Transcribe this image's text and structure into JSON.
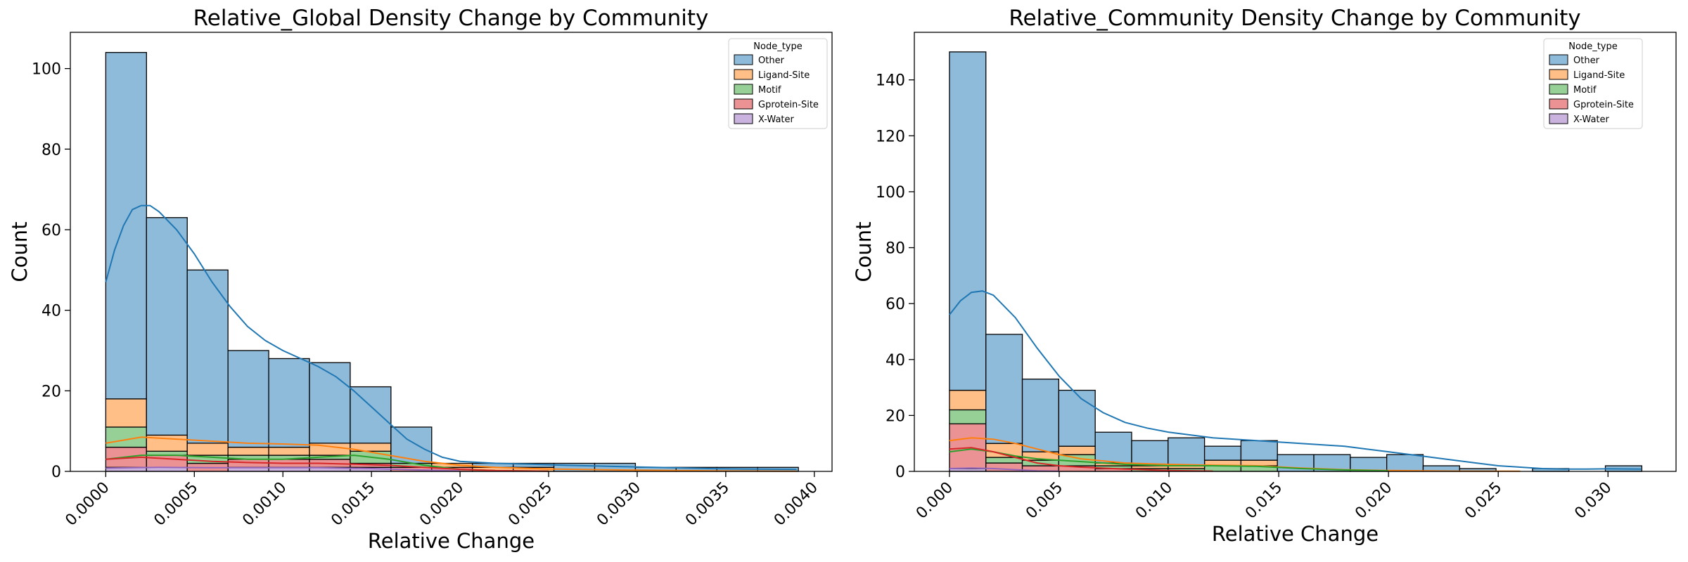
{
  "chart_data": [
    {
      "type": "histogram",
      "title": "Relative_Global Density Change by Community",
      "xlabel": "Relative Change",
      "ylabel": "Count",
      "xlim": [
        -0.0002,
        0.0041
      ],
      "ylim": [
        0,
        109
      ],
      "xticks": [
        0.0,
        0.0005,
        0.001,
        0.0015,
        0.002,
        0.0025,
        0.003,
        0.0035,
        0.004
      ],
      "xtick_labels": [
        "0.0000",
        "0.0005",
        "0.0010",
        "0.0015",
        "0.0020",
        "0.0025",
        "0.0030",
        "0.0035",
        "0.0040"
      ],
      "yticks": [
        0,
        20,
        40,
        60,
        80,
        100
      ],
      "ytick_labels": [
        "0",
        "20",
        "40",
        "60",
        "80",
        "100"
      ],
      "bin_edges": [
        0.0,
        0.00023,
        0.00046,
        0.00069,
        0.00092,
        0.00115,
        0.00138,
        0.00161,
        0.00184,
        0.00207,
        0.0023,
        0.00253,
        0.00276,
        0.00299,
        0.00322,
        0.00345,
        0.00368,
        0.00391
      ],
      "legend": {
        "title": "Node_type",
        "position": "upper right"
      },
      "series": [
        {
          "name": "X-Water",
          "color": "#9467bd",
          "counts": [
            1,
            1,
            0,
            1,
            1,
            1,
            1,
            0,
            0,
            0,
            0,
            0,
            0,
            0,
            0,
            0,
            0
          ]
        },
        {
          "name": "Gprotein-Site",
          "color": "#d62728",
          "counts": [
            5,
            3,
            2,
            2,
            2,
            2,
            1,
            1,
            1,
            0,
            0,
            0,
            0,
            0,
            0,
            0,
            0
          ]
        },
        {
          "name": "Motif",
          "color": "#2ca02c",
          "counts": [
            5,
            1,
            2,
            1,
            1,
            1,
            3,
            1,
            0,
            0,
            0,
            0,
            0,
            0,
            0,
            0,
            0
          ]
        },
        {
          "name": "Ligand-Site",
          "color": "#ff7f0e",
          "counts": [
            7,
            4,
            3,
            2,
            2,
            3,
            2,
            0,
            1,
            1,
            1,
            0,
            0,
            0,
            0,
            0,
            0
          ]
        },
        {
          "name": "Other",
          "color": "#1f77b4",
          "counts": [
            86,
            54,
            43,
            24,
            22,
            20,
            14,
            9,
            0,
            1,
            1,
            2,
            2,
            1,
            1,
            1,
            1
          ]
        }
      ],
      "kde": [
        {
          "name": "Other",
          "color": "#1f77b4",
          "points": [
            [
              0.0,
              47
            ],
            [
              5e-05,
              55
            ],
            [
              0.0001,
              61
            ],
            [
              0.00015,
              65
            ],
            [
              0.0002,
              66
            ],
            [
              0.00025,
              66
            ],
            [
              0.0003,
              64.5
            ],
            [
              0.0004,
              60
            ],
            [
              0.0005,
              54
            ],
            [
              0.0006,
              47
            ],
            [
              0.0007,
              41
            ],
            [
              0.0008,
              36
            ],
            [
              0.0009,
              32.5
            ],
            [
              0.001,
              30
            ],
            [
              0.0011,
              28
            ],
            [
              0.0012,
              26
            ],
            [
              0.0013,
              23.5
            ],
            [
              0.0014,
              20
            ],
            [
              0.0015,
              16
            ],
            [
              0.0016,
              12
            ],
            [
              0.0017,
              8
            ],
            [
              0.0018,
              5.5
            ],
            [
              0.0019,
              3.5
            ],
            [
              0.002,
              2.5
            ],
            [
              0.0022,
              2
            ],
            [
              0.0024,
              1.8
            ],
            [
              0.0026,
              1.5
            ],
            [
              0.0028,
              1.3
            ],
            [
              0.003,
              1.1
            ],
            [
              0.0032,
              0.9
            ],
            [
              0.0034,
              0.7
            ],
            [
              0.0036,
              0.6
            ],
            [
              0.0039,
              0.5
            ]
          ]
        },
        {
          "name": "Ligand-Site",
          "color": "#ff7f0e",
          "points": [
            [
              0.0,
              7
            ],
            [
              0.0002,
              8.5
            ],
            [
              0.0004,
              8
            ],
            [
              0.0006,
              7.5
            ],
            [
              0.0008,
              7
            ],
            [
              0.001,
              6.8
            ],
            [
              0.0012,
              6.5
            ],
            [
              0.0014,
              5.5
            ],
            [
              0.0016,
              4
            ],
            [
              0.0018,
              2.5
            ],
            [
              0.002,
              1.5
            ],
            [
              0.0022,
              1
            ],
            [
              0.0025,
              0.6
            ],
            [
              0.003,
              0.3
            ],
            [
              0.0035,
              0.1
            ],
            [
              0.0039,
              0.05
            ]
          ]
        },
        {
          "name": "Motif",
          "color": "#2ca02c",
          "points": [
            [
              0.0,
              3
            ],
            [
              0.0002,
              4
            ],
            [
              0.0004,
              4
            ],
            [
              0.0006,
              3.5
            ],
            [
              0.0008,
              3
            ],
            [
              0.001,
              3
            ],
            [
              0.0012,
              3.5
            ],
            [
              0.0014,
              4
            ],
            [
              0.0016,
              3
            ],
            [
              0.0018,
              1.5
            ],
            [
              0.002,
              0.5
            ],
            [
              0.0022,
              0.2
            ],
            [
              0.0025,
              0.05
            ]
          ]
        },
        {
          "name": "Gprotein-Site",
          "color": "#d62728",
          "points": [
            [
              0.0,
              3
            ],
            [
              0.0002,
              3.5
            ],
            [
              0.0004,
              3
            ],
            [
              0.0006,
              2.5
            ],
            [
              0.0008,
              2.2
            ],
            [
              0.001,
              2
            ],
            [
              0.0012,
              2
            ],
            [
              0.0014,
              1.8
            ],
            [
              0.0016,
              1.5
            ],
            [
              0.0018,
              1
            ],
            [
              0.002,
              0.5
            ],
            [
              0.0022,
              0.2
            ],
            [
              0.0025,
              0.05
            ]
          ]
        },
        {
          "name": "X-Water",
          "color": "#9467bd",
          "points": [
            [
              0.0,
              0.8
            ],
            [
              0.0003,
              1
            ],
            [
              0.0006,
              0.9
            ],
            [
              0.0009,
              0.9
            ],
            [
              0.0012,
              0.9
            ],
            [
              0.0015,
              0.7
            ],
            [
              0.0018,
              0.3
            ],
            [
              0.002,
              0.1
            ]
          ]
        }
      ]
    },
    {
      "type": "histogram",
      "title": "Relative_Community Density Change by Community",
      "xlabel": "Relative Change",
      "ylabel": "Count",
      "xlim": [
        -0.0016,
        0.0331
      ],
      "ylim": [
        0,
        157
      ],
      "xticks": [
        0.0,
        0.005,
        0.01,
        0.015,
        0.02,
        0.025,
        0.03
      ],
      "xtick_labels": [
        "0.000",
        "0.005",
        "0.010",
        "0.015",
        "0.020",
        "0.025",
        "0.030"
      ],
      "yticks": [
        0,
        20,
        40,
        60,
        80,
        100,
        120,
        140
      ],
      "ytick_labels": [
        "0",
        "20",
        "40",
        "60",
        "80",
        "100",
        "120",
        "140"
      ],
      "bin_edges": [
        0.0,
        0.00166,
        0.00332,
        0.00498,
        0.00664,
        0.0083,
        0.00996,
        0.01162,
        0.01328,
        0.01494,
        0.0166,
        0.01826,
        0.01992,
        0.02158,
        0.02324,
        0.0249,
        0.02656,
        0.02822,
        0.02988,
        0.03154
      ],
      "legend": {
        "title": "Node_type",
        "position": "upper right"
      },
      "series": [
        {
          "name": "X-Water",
          "color": "#9467bd",
          "counts": [
            1,
            0,
            0,
            0,
            0,
            0,
            0,
            0,
            0,
            0,
            0,
            0,
            0,
            0,
            0,
            0,
            0,
            0,
            0
          ]
        },
        {
          "name": "Gprotein-Site",
          "color": "#d62728",
          "counts": [
            16,
            3,
            2,
            2,
            1,
            0,
            0,
            0,
            0,
            0,
            0,
            0,
            0,
            0,
            0,
            0,
            0,
            0,
            0
          ]
        },
        {
          "name": "Motif",
          "color": "#2ca02c",
          "counts": [
            5,
            2,
            2,
            4,
            1,
            1,
            1,
            2,
            2,
            0,
            0,
            0,
            0,
            0,
            0,
            0,
            0,
            0,
            0
          ]
        },
        {
          "name": "Ligand-Site",
          "color": "#ff7f0e",
          "counts": [
            7,
            5,
            3,
            3,
            1,
            1,
            1,
            2,
            2,
            0,
            0,
            0,
            0,
            0,
            0,
            0,
            0,
            0,
            0
          ]
        },
        {
          "name": "Other",
          "color": "#1f77b4",
          "counts": [
            121,
            39,
            26,
            20,
            11,
            9,
            10,
            5,
            7,
            6,
            6,
            5,
            6,
            2,
            1,
            0,
            1,
            0,
            2
          ]
        }
      ],
      "kde": [
        {
          "name": "Other",
          "color": "#1f77b4",
          "points": [
            [
              0.0,
              56
            ],
            [
              0.0005,
              61
            ],
            [
              0.001,
              64
            ],
            [
              0.0015,
              64.5
            ],
            [
              0.002,
              63
            ],
            [
              0.003,
              55
            ],
            [
              0.004,
              44
            ],
            [
              0.005,
              34
            ],
            [
              0.006,
              26
            ],
            [
              0.007,
              21
            ],
            [
              0.008,
              17.5
            ],
            [
              0.009,
              15.5
            ],
            [
              0.01,
              14
            ],
            [
              0.011,
              13
            ],
            [
              0.012,
              12
            ],
            [
              0.013,
              11.5
            ],
            [
              0.014,
              11
            ],
            [
              0.015,
              10.5
            ],
            [
              0.016,
              10
            ],
            [
              0.017,
              9.5
            ],
            [
              0.018,
              9
            ],
            [
              0.019,
              8
            ],
            [
              0.02,
              7
            ],
            [
              0.021,
              6
            ],
            [
              0.022,
              5
            ],
            [
              0.023,
              4
            ],
            [
              0.024,
              3
            ],
            [
              0.025,
              2
            ],
            [
              0.026,
              1.5
            ],
            [
              0.027,
              1
            ],
            [
              0.028,
              0.8
            ],
            [
              0.029,
              0.8
            ],
            [
              0.03,
              0.9
            ],
            [
              0.0315,
              0.8
            ]
          ]
        },
        {
          "name": "Ligand-Site",
          "color": "#ff7f0e",
          "points": [
            [
              0.0,
              11
            ],
            [
              0.001,
              12
            ],
            [
              0.002,
              11.5
            ],
            [
              0.003,
              10
            ],
            [
              0.004,
              8
            ],
            [
              0.005,
              6
            ],
            [
              0.006,
              4.5
            ],
            [
              0.008,
              3
            ],
            [
              0.01,
              2.5
            ],
            [
              0.012,
              2.2
            ],
            [
              0.014,
              2
            ],
            [
              0.016,
              1.2
            ],
            [
              0.018,
              0.6
            ],
            [
              0.02,
              0.3
            ],
            [
              0.023,
              0.1
            ],
            [
              0.026,
              0.05
            ]
          ]
        },
        {
          "name": "Motif",
          "color": "#2ca02c",
          "points": [
            [
              0.0,
              7
            ],
            [
              0.001,
              8
            ],
            [
              0.002,
              7
            ],
            [
              0.003,
              5.5
            ],
            [
              0.004,
              4.5
            ],
            [
              0.005,
              4
            ],
            [
              0.006,
              3.5
            ],
            [
              0.008,
              2.5
            ],
            [
              0.01,
              2
            ],
            [
              0.012,
              2
            ],
            [
              0.014,
              1.8
            ],
            [
              0.016,
              1
            ],
            [
              0.018,
              0.5
            ],
            [
              0.02,
              0.2
            ]
          ]
        },
        {
          "name": "Gprotein-Site",
          "color": "#d62728",
          "points": [
            [
              0.0,
              8
            ],
            [
              0.001,
              8.5
            ],
            [
              0.002,
              7
            ],
            [
              0.003,
              5
            ],
            [
              0.004,
              3
            ],
            [
              0.005,
              2
            ],
            [
              0.006,
              1.5
            ],
            [
              0.008,
              0.8
            ],
            [
              0.01,
              0.3
            ],
            [
              0.012,
              0.1
            ]
          ]
        },
        {
          "name": "X-Water",
          "color": "#9467bd",
          "points": [
            [
              0.0,
              1
            ],
            [
              0.001,
              1.2
            ],
            [
              0.002,
              1
            ],
            [
              0.003,
              0.6
            ],
            [
              0.004,
              0.2
            ],
            [
              0.005,
              0.05
            ]
          ]
        }
      ]
    }
  ],
  "legend_labels": [
    "Other",
    "Ligand-Site",
    "Motif",
    "Gprotein-Site",
    "X-Water"
  ],
  "legend_colors": {
    "Other": "#1f77b4",
    "Ligand-Site": "#ff7f0e",
    "Motif": "#2ca02c",
    "Gprotein-Site": "#d62728",
    "X-Water": "#9467bd"
  }
}
